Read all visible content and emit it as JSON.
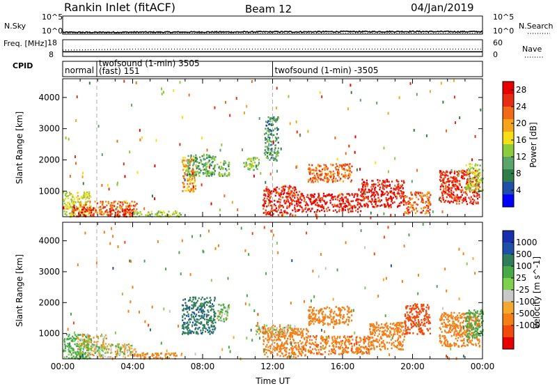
{
  "header": {
    "site_title": "Rankin Inlet (fitACF)",
    "beam": "Beam 12",
    "date": "04/Jan/2019"
  },
  "colors": {
    "power_scale": [
      "#0000ff",
      "#1f4fa6",
      "#2f7d48",
      "#5aa56a",
      "#8ccb3c",
      "#f5e018",
      "#f5a51c",
      "#f26a19",
      "#e62d14",
      "#e60000"
    ],
    "velocity_scale": [
      "#e60000",
      "#f24a0a",
      "#f57f17",
      "#f5a830",
      "#c8c8c8",
      "#7ed04e",
      "#48a946",
      "#2f7d5a",
      "#1f4fa6",
      "#1a2fb0"
    ],
    "ground_scatter": "#c0c0c0"
  },
  "chart_data": [
    {
      "type": "line",
      "panel": "noise",
      "ylabel_left": "N.Sky",
      "ylabel_right": "N.Search",
      "yticks_left": [
        "10^5",
        "10^0"
      ],
      "yticks_right": [
        "10^5",
        "10^0"
      ],
      "series": [
        {
          "name": "N.Sky",
          "style": "solid",
          "x_hours": [
            0,
            2,
            4,
            6,
            8,
            10,
            12,
            14,
            16,
            18,
            20,
            22,
            24
          ],
          "y_log10": [
            0.3,
            0.3,
            0.35,
            0.35,
            0.4,
            0.4,
            0.45,
            0.45,
            0.5,
            0.5,
            0.55,
            0.5,
            0.5
          ]
        },
        {
          "name": "N.Search",
          "style": "dotted",
          "x_hours": [
            0,
            24
          ],
          "y_log10": [
            0.1,
            0.1
          ]
        }
      ]
    },
    {
      "type": "line",
      "panel": "frequency",
      "ylabel_left": "Freq. [MHz]",
      "ylabel_right": "Nave",
      "yticks_left": [
        "18",
        "8"
      ],
      "yticks_right": [
        "60",
        "0"
      ],
      "series": [
        {
          "name": "Freq",
          "style": "solid",
          "x_hours": [
            0,
            24
          ],
          "y": [
            10.6,
            10.6
          ]
        },
        {
          "name": "Nave",
          "style": "dotted",
          "x_hours": [
            0,
            2,
            4,
            24
          ],
          "y": [
            22,
            24,
            26,
            26
          ]
        }
      ]
    },
    {
      "type": "table",
      "panel": "cpid",
      "ylabel": "CPID",
      "segments": [
        {
          "start_hours": 0,
          "end_hours": 1.95,
          "label": "normal"
        },
        {
          "start_hours": 1.95,
          "end_hours": 12,
          "label": "twofsound (1-min) 3505",
          "sub_label": "(fast) 151"
        },
        {
          "start_hours": 12,
          "end_hours": 24,
          "label": "twofsound (1-min) -3505"
        }
      ]
    },
    {
      "type": "heatmap",
      "panel": "power",
      "ylabel": "Slant Range [km]",
      "yticks": [
        1000,
        2000,
        3000,
        4000
      ],
      "ylim": [
        180,
        4600
      ],
      "colorbar_label": "Power [dB]",
      "colorbar_ticks": [
        4,
        8,
        12,
        16,
        20,
        24,
        28
      ],
      "colorbar_range": [
        0,
        30
      ],
      "mode_change_markers_hours": [
        1.95,
        12
      ],
      "regions": [
        {
          "t0": 0.0,
          "t1": 1.6,
          "r0": 200,
          "r1": 1000,
          "value": 16
        },
        {
          "t0": 0.5,
          "t1": 1.8,
          "r0": 200,
          "r1": 600,
          "value": 26
        },
        {
          "t0": 1.8,
          "t1": 4.2,
          "r0": 250,
          "r1": 700,
          "value": 22
        },
        {
          "t0": 2.5,
          "t1": 4.0,
          "r0": 200,
          "r1": 450,
          "value": 27
        },
        {
          "t0": 4.0,
          "t1": 6.8,
          "r0": 200,
          "r1": 380,
          "value": 14
        },
        {
          "t0": 6.8,
          "t1": 7.6,
          "r0": 1000,
          "r1": 2100,
          "value": 20
        },
        {
          "t0": 7.0,
          "t1": 8.7,
          "r0": 1500,
          "r1": 2200,
          "value": 11
        },
        {
          "t0": 8.8,
          "t1": 9.5,
          "r0": 1500,
          "r1": 2000,
          "value": 12
        },
        {
          "t0": 10.3,
          "t1": 11.2,
          "r0": 1700,
          "r1": 2100,
          "value": 13
        },
        {
          "t0": 11.4,
          "t1": 13.5,
          "r0": 250,
          "r1": 1200,
          "value": 26
        },
        {
          "t0": 13.5,
          "t1": 17.0,
          "r0": 350,
          "r1": 950,
          "value": 27
        },
        {
          "t0": 14.0,
          "t1": 16.5,
          "r0": 1300,
          "r1": 1900,
          "value": 22
        },
        {
          "t0": 17.0,
          "t1": 19.5,
          "r0": 500,
          "r1": 1400,
          "value": 27
        },
        {
          "t0": 19.5,
          "t1": 21.0,
          "r0": 300,
          "r1": 1000,
          "value": 23
        },
        {
          "t0": 21.5,
          "t1": 23.8,
          "r0": 600,
          "r1": 1700,
          "value": 26
        },
        {
          "t0": 23.0,
          "t1": 24.0,
          "r0": 1000,
          "r1": 1900,
          "value": 14
        },
        {
          "t0": 11.5,
          "t1": 12.3,
          "r0": 2000,
          "r1": 3400,
          "value": 9
        }
      ]
    },
    {
      "type": "heatmap",
      "panel": "velocity",
      "ylabel": "Slant Range [km]",
      "yticks": [
        1000,
        2000,
        3000,
        4000
      ],
      "ylim": [
        180,
        4600
      ],
      "xticks": [
        "00:00",
        "04:00",
        "08:00",
        "12:00",
        "16:00",
        "20:00",
        "00:00"
      ],
      "xlabel": "Time UT",
      "colorbar_label": "Velocity [m s^-1]",
      "colorbar_ticks": [
        -1000,
        -500,
        -100,
        -25,
        25,
        100,
        500,
        1000
      ],
      "mode_change_markers_hours": [
        1.95,
        12
      ],
      "regions": [
        {
          "t0": 0.0,
          "t1": 1.6,
          "r0": 200,
          "r1": 1000,
          "value": 200
        },
        {
          "t0": 0.8,
          "t1": 2.5,
          "r0": 300,
          "r1": 1000,
          "value": 0
        },
        {
          "t0": 2.0,
          "t1": 4.2,
          "r0": 250,
          "r1": 700,
          "value": 0
        },
        {
          "t0": 4.0,
          "t1": 6.8,
          "r0": 200,
          "r1": 400,
          "value": -200
        },
        {
          "t0": 6.8,
          "t1": 8.7,
          "r0": 1000,
          "r1": 2200,
          "value": 900
        },
        {
          "t0": 8.8,
          "t1": 9.5,
          "r0": 1400,
          "r1": 2000,
          "value": 120
        },
        {
          "t0": 11.4,
          "t1": 14.0,
          "r0": 250,
          "r1": 1200,
          "value": -300
        },
        {
          "t0": 11.0,
          "t1": 13.0,
          "r0": 1000,
          "r1": 1300,
          "value": 0
        },
        {
          "t0": 14.0,
          "t1": 17.5,
          "r0": 350,
          "r1": 950,
          "value": -400
        },
        {
          "t0": 14.0,
          "t1": 16.5,
          "r0": 1300,
          "r1": 1900,
          "value": -300
        },
        {
          "t0": 17.5,
          "t1": 19.5,
          "r0": 500,
          "r1": 1400,
          "value": -300
        },
        {
          "t0": 19.5,
          "t1": 21.0,
          "r0": 1000,
          "r1": 2000,
          "value": -800
        },
        {
          "t0": 21.5,
          "t1": 23.8,
          "r0": 600,
          "r1": 1700,
          "value": -300
        },
        {
          "t0": 23.0,
          "t1": 24.0,
          "r0": 900,
          "r1": 1800,
          "value": 250
        }
      ]
    }
  ]
}
